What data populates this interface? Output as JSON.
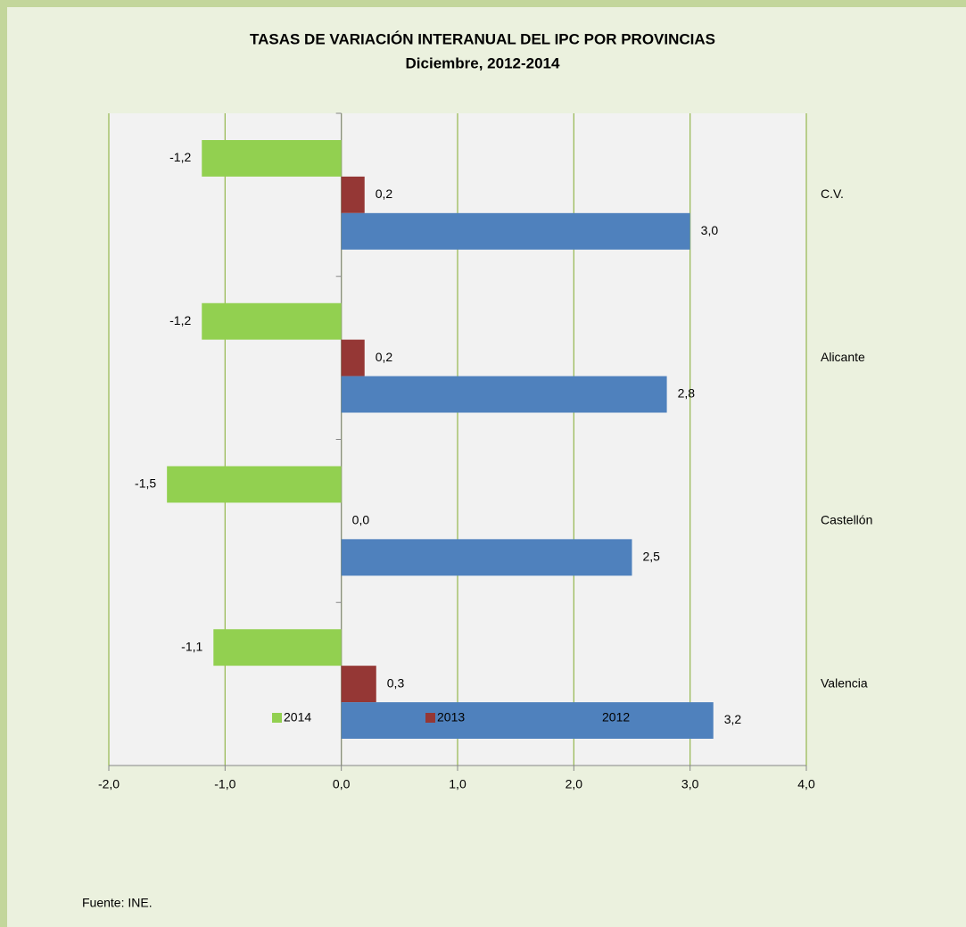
{
  "chart_data": {
    "type": "barh",
    "title": "TASAS DE VARIACIÓN INTERANUAL DEL IPC POR PROVINCIAS",
    "subtitle": "Diciembre, 2012-2014",
    "categories": [
      "C.V.",
      "Alicante",
      "Castellón",
      "Valencia"
    ],
    "series": [
      {
        "name": "2014",
        "color": "#92d050",
        "values": [
          -1.2,
          -1.2,
          -1.5,
          -1.1
        ],
        "value_labels": [
          "-1,2",
          "-1,2",
          "-1,5",
          "-1,1"
        ]
      },
      {
        "name": "2013",
        "color": "#953735",
        "values": [
          0.2,
          0.2,
          0.0,
          0.3
        ],
        "value_labels": [
          "0,2",
          "0,2",
          "0,0",
          "0,3"
        ]
      },
      {
        "name": "2012",
        "color": "#4f81bd",
        "values": [
          3.0,
          2.8,
          2.5,
          3.2
        ],
        "value_labels": [
          "3,0",
          "2,8",
          "2,5",
          "3,2"
        ]
      }
    ],
    "xlim": [
      -2,
      4
    ],
    "xticks": [
      {
        "value": -2,
        "label": "-2,0"
      },
      {
        "value": -1,
        "label": "-1,0"
      },
      {
        "value": 0,
        "label": "0,0"
      },
      {
        "value": 1,
        "label": "1,0"
      },
      {
        "value": 2,
        "label": "2,0"
      },
      {
        "value": 3,
        "label": "3,0"
      },
      {
        "value": 4,
        "label": "4,0"
      }
    ],
    "grid": true,
    "legend": "bottom",
    "source": "Fuente: INE."
  }
}
